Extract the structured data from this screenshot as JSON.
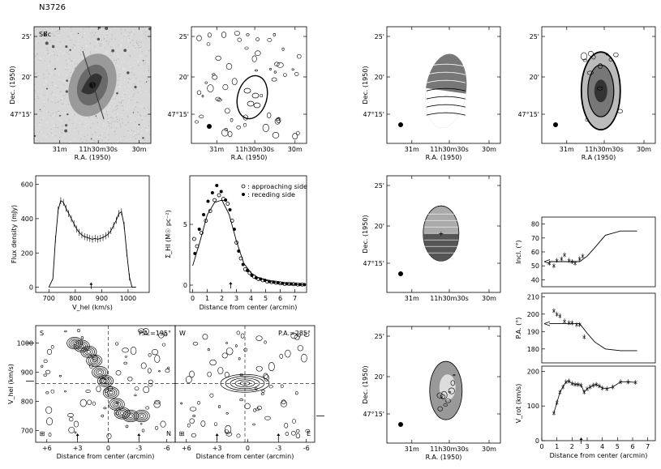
{
  "figure_title": "N3726",
  "chart_data": [
    {
      "id": "optical",
      "type": "image",
      "panel_label": "SBc",
      "xlabel": "R.A. (1950)",
      "ylabel": "Dec. (1950)",
      "xticks": [
        "31<sup>m</sup>",
        "11<sup>h</sup>30<sup>m</sup>30<sup>s</sup>",
        "30<sup>m</sup>"
      ],
      "x_tick_labels": [
        "31m",
        "11h30m30s",
        "30m"
      ],
      "y_tick_labels": [
        "25'",
        "20'",
        "47°15'"
      ]
    },
    {
      "id": "hi_map",
      "type": "contour",
      "xlabel": "R.A. (1950)",
      "ylabel": "",
      "x_tick_labels": [
        "31m",
        "11h30m30s",
        "30m"
      ],
      "y_tick_labels": [
        "25'",
        "20'",
        "47°15'"
      ]
    },
    {
      "id": "velocity_field",
      "type": "contour",
      "xlabel": "R.A. (1950)",
      "ylabel": "Dec. (1950)",
      "x_tick_labels": [
        "31m",
        "11h30m30s",
        "30m"
      ],
      "y_tick_labels": [
        "25'",
        "20'",
        "47°15'"
      ]
    },
    {
      "id": "hi_density_map",
      "type": "contour",
      "xlabel": "R.A (1950)",
      "ylabel": "",
      "x_tick_labels": [
        "31m",
        "11h30m30s",
        "30m"
      ],
      "y_tick_labels": [
        "25'",
        "20'",
        "47°15'"
      ]
    },
    {
      "id": "model_velocity",
      "type": "contour",
      "xlabel": "",
      "ylabel": "Dec. (1950)",
      "y_tick_labels": [
        "25'",
        "20'",
        "47°15'"
      ],
      "x_tick_labels": [
        "31m",
        "11h30m30s",
        "30m"
      ]
    },
    {
      "id": "residual_velocity",
      "type": "contour",
      "xlabel": "R.A. (1950)",
      "ylabel": "Dec. (1950)",
      "x_tick_labels": [
        "31m",
        "11h30m30s",
        "30m"
      ],
      "y_tick_labels": [
        "25'",
        "20'",
        "47°15'"
      ]
    },
    {
      "id": "profile",
      "type": "line",
      "xlabel": "V_hel (km/s)",
      "ylabel": "Flux density (mJy)",
      "xlim": [
        650,
        1080
      ],
      "ylim": [
        -30,
        650
      ],
      "xticks": [
        700,
        800,
        900,
        1000
      ],
      "yticks": [
        0,
        200,
        400,
        600
      ],
      "x": [
        700,
        715,
        725,
        735,
        745,
        755,
        765,
        775,
        785,
        795,
        805,
        815,
        825,
        835,
        845,
        855,
        865,
        875,
        885,
        895,
        905,
        915,
        925,
        935,
        945,
        955,
        965,
        975,
        985,
        995,
        1005,
        1015,
        1030
      ],
      "y": [
        0,
        50,
        280,
        450,
        505,
        495,
        460,
        430,
        400,
        370,
        340,
        320,
        305,
        295,
        290,
        285,
        280,
        285,
        280,
        285,
        290,
        300,
        310,
        330,
        360,
        390,
        430,
        440,
        360,
        200,
        60,
        0,
        0
      ],
      "marker_x": 860
    },
    {
      "id": "surface_density",
      "type": "scatter",
      "xlabel": "Distance from center (arcmin)",
      "ylabel": "Σ_HI (M☉ pc⁻²)",
      "xlim": [
        -0.2,
        7.8
      ],
      "ylim": [
        -0.6,
        9.0
      ],
      "xticks": [
        0,
        1,
        2,
        3,
        4,
        5,
        6,
        7
      ],
      "yticks": [
        0,
        5
      ],
      "legend": [
        {
          "label": "approaching side",
          "marker": "open"
        },
        {
          "label": "receding side",
          "marker": "filled"
        }
      ],
      "series": [
        {
          "name": "approaching side",
          "x": [
            0.1,
            0.3,
            0.6,
            0.9,
            1.2,
            1.5,
            1.8,
            2.1,
            2.4,
            2.7,
            3.0,
            3.3,
            3.6,
            3.9,
            4.2,
            4.5,
            4.8,
            5.1,
            5.4,
            5.7,
            6.0,
            6.3,
            6.6,
            6.9,
            7.2,
            7.5
          ],
          "y": [
            3.8,
            3.2,
            4.3,
            5.3,
            6.1,
            7.0,
            7.4,
            7.1,
            6.7,
            5.3,
            3.5,
            2.2,
            1.3,
            1.0,
            0.7,
            0.5,
            0.4,
            0.3,
            0.25,
            0.2,
            0.15,
            0.1,
            0.1,
            0.08,
            0.05,
            0.05
          ]
        },
        {
          "name": "receding side",
          "x": [
            0.15,
            0.45,
            0.75,
            1.05,
            1.35,
            1.65,
            1.95,
            2.25,
            2.55,
            2.85,
            3.15,
            3.45,
            3.75,
            4.05,
            4.35,
            4.65,
            4.95,
            5.25,
            5.55,
            5.85,
            6.15,
            6.45,
            6.75,
            7.05,
            7.35,
            7.65
          ],
          "y": [
            2.6,
            4.6,
            5.8,
            6.9,
            7.6,
            8.2,
            7.7,
            7.0,
            6.2,
            4.6,
            2.8,
            1.7,
            1.2,
            0.8,
            0.6,
            0.5,
            0.4,
            0.3,
            0.25,
            0.2,
            0.15,
            0.12,
            0.1,
            0.08,
            0.05,
            0.04
          ]
        },
        {
          "name": "",
          "type": "line",
          "x": [
            0,
            0.5,
            1,
            1.5,
            2,
            2.5,
            3,
            3.5,
            4,
            4.5,
            5,
            5.5,
            6,
            6.5,
            7,
            7.6
          ],
          "y": [
            1.6,
            3.6,
            5.8,
            6.8,
            7.0,
            5.8,
            3.6,
            1.8,
            1.0,
            0.6,
            0.4,
            0.25,
            0.15,
            0.1,
            0.05,
            0.02
          ]
        }
      ],
      "marker_x": 2.6
    },
    {
      "id": "pv_major",
      "type": "contour",
      "panel_left": "S",
      "panel_right": "N",
      "pa_label": "P.A.=195°",
      "xlabel": "Distance from center (arcmin)",
      "ylabel": "V_hel (km/s)",
      "x_tick_labels": [
        "+6",
        "+3",
        "0",
        "-3",
        "-6"
      ],
      "y_tick_labels": [
        "700",
        "800",
        "900",
        "1000"
      ],
      "ylim": [
        660,
        1060
      ]
    },
    {
      "id": "pv_minor",
      "type": "contour",
      "panel_left": "W",
      "panel_right": "E",
      "pa_label": "P.A.=285°",
      "xlabel": "Distance from center (arcmin)",
      "x_tick_labels": [
        "+6",
        "+3",
        "0",
        "-3",
        "-6"
      ]
    },
    {
      "id": "inclination",
      "type": "scatter",
      "ylabel": "Incl. (°)",
      "xlim": [
        0,
        7.5
      ],
      "ylim": [
        35,
        85
      ],
      "yticks": [
        40,
        50,
        60,
        70,
        80
      ],
      "x": [
        0.5,
        0.8,
        1.0,
        1.3,
        1.5,
        1.8,
        2.0,
        2.2,
        2.5,
        2.7
      ],
      "y": [
        52,
        50,
        54,
        55,
        58,
        54,
        53,
        52,
        55,
        57
      ],
      "model_x": [
        0.5,
        2.5,
        3.0,
        3.5,
        4.2,
        5.2,
        6.3
      ],
      "model_y": [
        53,
        53,
        57,
        63,
        72,
        75,
        75
      ],
      "flat_value": 53
    },
    {
      "id": "position_angle",
      "type": "scatter",
      "ylabel": "P.A. (°)",
      "xlim": [
        0,
        7.5
      ],
      "ylim": [
        172,
        212
      ],
      "yticks": [
        180,
        190,
        200,
        210
      ],
      "x": [
        0.8,
        1.0,
        1.2,
        1.5,
        1.8,
        2.0,
        2.3,
        2.5,
        2.8
      ],
      "y": [
        202,
        200,
        199,
        196,
        195,
        195,
        194,
        194,
        187
      ],
      "model_x": [
        0.5,
        2.5,
        3.0,
        3.5,
        4.2,
        5.2,
        6.3
      ],
      "model_y": [
        194.5,
        194.5,
        189,
        184,
        180,
        179,
        179
      ],
      "flat_value": 194.5
    },
    {
      "id": "rotation_curve",
      "type": "scatter",
      "xlabel": "Distance from center (arcmin)",
      "ylabel": "V_rot (km/s)",
      "xlim": [
        0,
        7.5
      ],
      "ylim": [
        0,
        215
      ],
      "xticks": [
        0,
        1,
        2,
        3,
        4,
        5,
        6,
        7
      ],
      "yticks": [
        0,
        100,
        200
      ],
      "x": [
        0.8,
        1.0,
        1.2,
        1.4,
        1.6,
        1.8,
        2.0,
        2.2,
        2.4,
        2.6,
        2.8,
        3.0,
        3.2,
        3.4,
        3.6,
        3.8,
        4.0,
        4.3,
        4.7,
        5.2,
        5.7,
        6.2
      ],
      "y": [
        80,
        110,
        140,
        155,
        170,
        172,
        165,
        163,
        162,
        160,
        140,
        150,
        155,
        160,
        162,
        158,
        152,
        150,
        155,
        170,
        170,
        168
      ],
      "marker_x": 2.6
    }
  ]
}
